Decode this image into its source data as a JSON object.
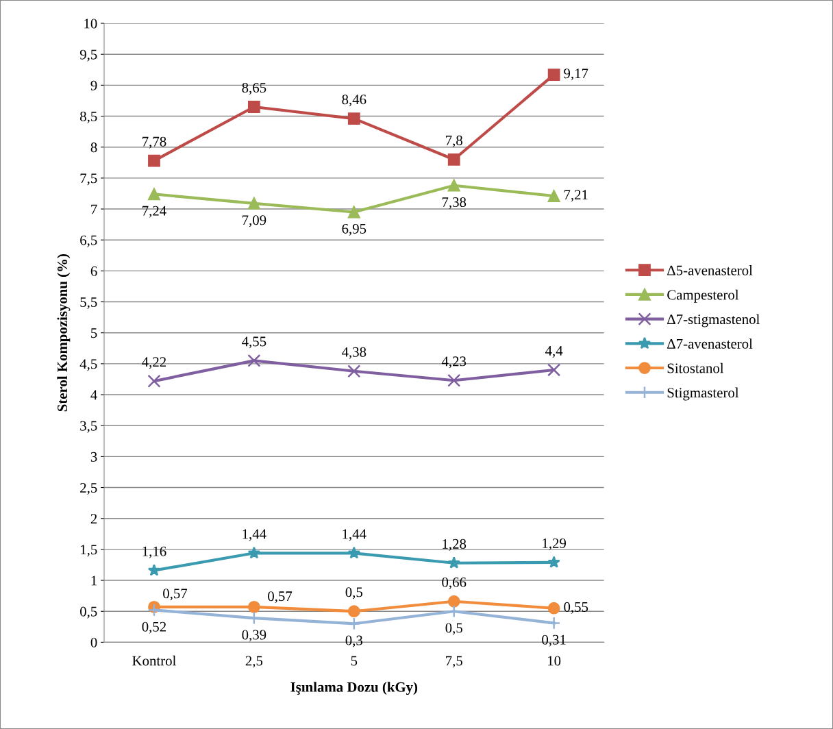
{
  "chart_data": {
    "type": "line",
    "xlabel": "Işınlama Dozu (kGy)",
    "ylabel": "Sterol Kompozisyonu (%)",
    "categories": [
      "Kontrol",
      "2,5",
      "5",
      "7,5",
      "10"
    ],
    "series": [
      {
        "name": "Δ5-avenasterol",
        "color": "#be4b48",
        "marker": "square",
        "values": [
          7.78,
          8.65,
          8.46,
          7.8,
          9.17
        ],
        "value_labels": [
          "7,78",
          "8,65",
          "8,46",
          "7,8",
          "9,17"
        ]
      },
      {
        "name": "Campesterol",
        "color": "#9bbb59",
        "marker": "triangle",
        "values": [
          7.24,
          7.09,
          6.95,
          7.38,
          7.21
        ],
        "value_labels": [
          "7,24",
          "7,09",
          "6,95",
          "7,38",
          "7,21"
        ]
      },
      {
        "name": "Δ7-stigmastenol",
        "color": "#7f5fa0",
        "marker": "cross",
        "values": [
          4.22,
          4.55,
          4.38,
          4.23,
          4.4
        ],
        "value_labels": [
          "4,22",
          "4,55",
          "4,38",
          "4,23",
          "4,4"
        ]
      },
      {
        "name": "Δ7-avenasterol",
        "color": "#3a9bb0",
        "marker": "star",
        "values": [
          1.16,
          1.44,
          1.44,
          1.28,
          1.29
        ],
        "value_labels": [
          "1,16",
          "1,44",
          "1,44",
          "1,28",
          "1,29"
        ]
      },
      {
        "name": "Sitostanol",
        "color": "#f08c3c",
        "marker": "circle",
        "values": [
          0.57,
          0.57,
          0.5,
          0.66,
          0.55
        ],
        "value_labels": [
          "0,57",
          "0,57",
          "0,5",
          "0,66",
          "0,55"
        ]
      },
      {
        "name": "Stigmasterol",
        "color": "#95b3d7",
        "marker": "plus",
        "values": [
          0.52,
          0.39,
          0.3,
          0.5,
          0.31
        ],
        "value_labels": [
          "0,52",
          "0,39",
          "0,3",
          "0,5",
          "0,31"
        ]
      }
    ],
    "ylim": [
      0,
      10
    ],
    "yticks": [
      0,
      {
        "value": 0.5,
        "label": "0,5"
      },
      1,
      {
        "value": 1.5,
        "label": "1,5"
      },
      2,
      {
        "value": 2.5,
        "label": "2,5"
      },
      3,
      {
        "value": 3.5,
        "label": "3,5"
      },
      4,
      {
        "value": 4.5,
        "label": "4,5"
      },
      5,
      {
        "value": 5.5,
        "label": "5,5"
      },
      6,
      {
        "value": 6.5,
        "label": "6,5"
      },
      7,
      {
        "value": 7.5,
        "label": "7,5"
      },
      8,
      {
        "value": 8.5,
        "label": "8,5"
      },
      9,
      {
        "value": 9.5,
        "label": "9,5"
      },
      10
    ],
    "grid": "y",
    "legend": "right",
    "line_style": "solid"
  }
}
